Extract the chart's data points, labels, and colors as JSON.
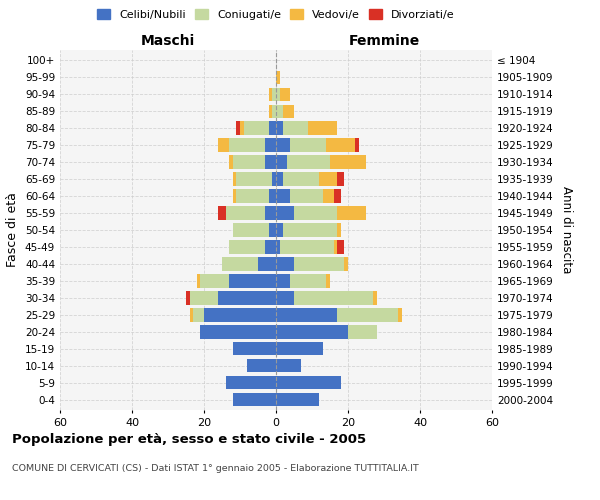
{
  "age_groups": [
    "0-4",
    "5-9",
    "10-14",
    "15-19",
    "20-24",
    "25-29",
    "30-34",
    "35-39",
    "40-44",
    "45-49",
    "50-54",
    "55-59",
    "60-64",
    "65-69",
    "70-74",
    "75-79",
    "80-84",
    "85-89",
    "90-94",
    "95-99",
    "100+"
  ],
  "birth_years": [
    "2000-2004",
    "1995-1999",
    "1990-1994",
    "1985-1989",
    "1980-1984",
    "1975-1979",
    "1970-1974",
    "1965-1969",
    "1960-1964",
    "1955-1959",
    "1950-1954",
    "1945-1949",
    "1940-1944",
    "1935-1939",
    "1930-1934",
    "1925-1929",
    "1920-1924",
    "1915-1919",
    "1910-1914",
    "1905-1909",
    "≤ 1904"
  ],
  "male_celibi": [
    12,
    14,
    8,
    12,
    21,
    20,
    16,
    13,
    5,
    3,
    2,
    3,
    2,
    1,
    3,
    3,
    2,
    0,
    0,
    0,
    0
  ],
  "male_coniugati": [
    0,
    0,
    0,
    0,
    0,
    3,
    8,
    8,
    10,
    10,
    10,
    11,
    9,
    10,
    9,
    10,
    7,
    1,
    1,
    0,
    0
  ],
  "male_vedovi": [
    0,
    0,
    0,
    0,
    0,
    1,
    0,
    1,
    0,
    0,
    0,
    0,
    1,
    1,
    1,
    3,
    1,
    1,
    1,
    0,
    0
  ],
  "male_divorziati": [
    0,
    0,
    0,
    0,
    0,
    0,
    1,
    0,
    0,
    0,
    0,
    2,
    0,
    0,
    0,
    0,
    1,
    0,
    0,
    0,
    0
  ],
  "female_celibi": [
    12,
    18,
    7,
    13,
    20,
    17,
    5,
    4,
    5,
    1,
    2,
    5,
    4,
    2,
    3,
    4,
    2,
    0,
    0,
    0,
    0
  ],
  "female_coniugati": [
    0,
    0,
    0,
    0,
    8,
    17,
    22,
    10,
    14,
    15,
    15,
    12,
    9,
    10,
    12,
    10,
    7,
    2,
    1,
    0,
    0
  ],
  "female_vedovi": [
    0,
    0,
    0,
    0,
    0,
    1,
    1,
    1,
    1,
    1,
    1,
    8,
    3,
    5,
    10,
    8,
    8,
    3,
    3,
    1,
    0
  ],
  "female_divorziati": [
    0,
    0,
    0,
    0,
    0,
    0,
    0,
    0,
    0,
    2,
    0,
    0,
    2,
    2,
    0,
    1,
    0,
    0,
    0,
    0,
    0
  ],
  "colors": {
    "celibi": "#4472c4",
    "coniugati": "#c5d9a0",
    "vedovi": "#f4b942",
    "divorziati": "#d93025"
  },
  "title": "Popolazione per età, sesso e stato civile - 2005",
  "subtitle": "COMUNE DI CERVICATI (CS) - Dati ISTAT 1° gennaio 2005 - Elaborazione TUTTITALIA.IT",
  "ylabel_left": "Fasce di età",
  "ylabel_right": "Anni di nascita",
  "xlabel_left": "Maschi",
  "xlabel_right": "Femmine",
  "xlim": 60,
  "bg_color": "#f5f5f5",
  "grid_color": "#cccccc"
}
